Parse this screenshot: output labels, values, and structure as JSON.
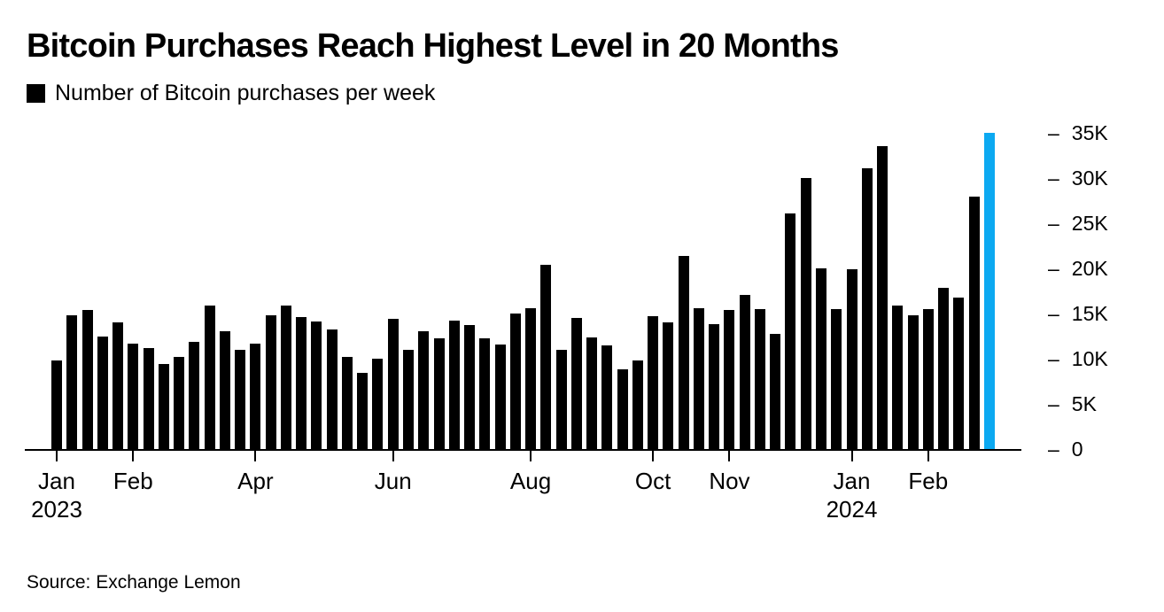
{
  "header": {
    "title": "Bitcoin Purchases Reach Highest Level in 20 Months",
    "legend_label": "Number of Bitcoin purchases per week"
  },
  "footer": {
    "source": "Source: Exchange Lemon"
  },
  "colors": {
    "bar": "#000000",
    "highlight_bar": "#0ca9f1",
    "text": "#000000",
    "background": "#ffffff"
  },
  "chart_data": {
    "type": "bar",
    "title": "Bitcoin Purchases Reach Highest Level in 20 Months",
    "series_name": "Number of Bitcoin purchases per week",
    "values_unit": "thousands of purchases",
    "x_description": "weeks from Jan 2023 through early Mar 2024",
    "values_k": [
      9.8,
      14.8,
      15.4,
      12.5,
      14.0,
      11.7,
      11.2,
      9.4,
      10.2,
      11.9,
      15.9,
      13.0,
      11.0,
      11.7,
      14.8,
      15.9,
      14.6,
      14.1,
      13.2,
      10.2,
      8.4,
      10.0,
      14.4,
      11.0,
      13.0,
      12.3,
      14.2,
      13.7,
      12.3,
      11.6,
      15.0,
      15.6,
      20.4,
      11.0,
      14.5,
      12.4,
      11.5,
      8.8,
      9.8,
      14.7,
      14.0,
      21.4,
      15.6,
      13.8,
      15.4,
      17.1,
      15.5,
      12.7,
      26.1,
      30.0,
      20.0,
      15.5,
      19.9,
      31.1,
      33.5,
      15.9,
      14.8,
      15.5,
      17.8,
      16.8,
      27.9,
      35.0
    ],
    "highlight_index": 61,
    "x_ticks": [
      {
        "label": "Jan",
        "sublabel": "2023",
        "week": 1
      },
      {
        "label": "Feb",
        "sublabel": "",
        "week": 6
      },
      {
        "label": "Apr",
        "sublabel": "",
        "week": 14
      },
      {
        "label": "Jun",
        "sublabel": "",
        "week": 23
      },
      {
        "label": "Aug",
        "sublabel": "",
        "week": 32
      },
      {
        "label": "Oct",
        "sublabel": "",
        "week": 40
      },
      {
        "label": "Nov",
        "sublabel": "",
        "week": 45
      },
      {
        "label": "Jan",
        "sublabel": "2024",
        "week": 53
      },
      {
        "label": "Feb",
        "sublabel": "",
        "week": 58
      }
    ],
    "y_ticks": [
      {
        "label": "0",
        "value_k": 0
      },
      {
        "label": "5K",
        "value_k": 5
      },
      {
        "label": "10K",
        "value_k": 10
      },
      {
        "label": "15K",
        "value_k": 15
      },
      {
        "label": "20K",
        "value_k": 20
      },
      {
        "label": "25K",
        "value_k": 25
      },
      {
        "label": "30K",
        "value_k": 30
      },
      {
        "label": "35K",
        "value_k": 35
      }
    ],
    "ylim_k": [
      0,
      35
    ],
    "legend_position": "top-left",
    "grid": false,
    "y_axis_side": "right",
    "y_tick_prefix": "–"
  }
}
